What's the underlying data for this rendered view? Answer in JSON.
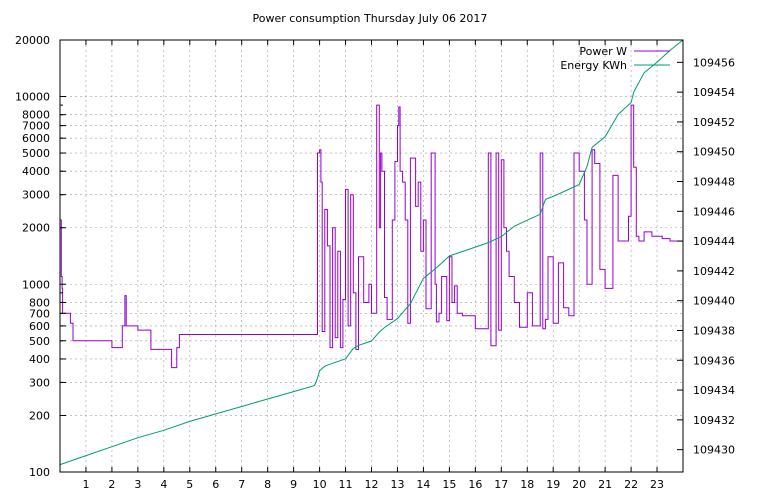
{
  "chart_data": {
    "type": "line",
    "title": "Power consumption Thursday July 06 2017",
    "xlabel": "",
    "ylabel": "",
    "y2label": "",
    "xlim": [
      0,
      24
    ],
    "x_ticks": [
      "1",
      "2",
      "3",
      "4",
      "5",
      "6",
      "7",
      "8",
      "9",
      "10",
      "11",
      "12",
      "13",
      "14",
      "15",
      "16",
      "17",
      "18",
      "19",
      "20",
      "21",
      "22",
      "23"
    ],
    "y_scale": "log",
    "ylim": [
      100,
      20000
    ],
    "y_ticks": [
      "100",
      "200",
      "300",
      "400",
      "500",
      "600",
      "700",
      "800",
      "1000",
      "2000",
      "3000",
      "4000",
      "5000",
      "6000",
      "7000",
      "8000",
      "10000",
      "20000"
    ],
    "y2lim": [
      109428.5,
      109457.5
    ],
    "y2_ticks": [
      "109430",
      "109432",
      "109434",
      "109436",
      "109438",
      "109440",
      "109442",
      "109444",
      "109446",
      "109448",
      "109450",
      "109452",
      "109454",
      "109456"
    ],
    "grid": true,
    "legend_position": "top-right",
    "colors": {
      "power": "#9400d3",
      "energy": "#009e73"
    },
    "series": [
      {
        "name": "Power W",
        "axis": "y",
        "x": [
          0,
          0.05,
          0.08,
          0.1,
          0.12,
          0.2,
          0.4,
          0.5,
          0.6,
          1.5,
          2.0,
          2.4,
          2.4,
          2.5,
          2.55,
          3.0,
          3.4,
          3.5,
          3.6,
          4.2,
          4.3,
          4.5,
          4.5,
          4.6,
          9.9,
          9.92,
          10.0,
          10.05,
          10.1,
          10.2,
          10.3,
          10.4,
          10.5,
          10.6,
          10.7,
          10.8,
          10.9,
          11.0,
          11.1,
          11.2,
          11.3,
          11.4,
          11.5,
          11.7,
          11.9,
          12.0,
          12.2,
          12.3,
          12.35,
          12.4,
          12.5,
          12.6,
          12.8,
          12.9,
          13.0,
          13.05,
          13.1,
          13.2,
          13.3,
          13.4,
          13.5,
          13.7,
          13.8,
          13.9,
          14.0,
          14.1,
          14.3,
          14.45,
          14.5,
          14.6,
          14.7,
          14.9,
          15.0,
          15.1,
          15.2,
          15.3,
          15.5,
          15.8,
          16.0,
          16.2,
          16.5,
          16.6,
          16.8,
          16.9,
          17.0,
          17.1,
          17.2,
          17.3,
          17.5,
          17.7,
          18.0,
          18.2,
          18.5,
          18.6,
          18.7,
          18.8,
          19.0,
          19.2,
          19.4,
          19.6,
          19.8,
          20.0,
          20.2,
          20.3,
          20.5,
          20.6,
          20.8,
          21.0,
          21.3,
          21.5,
          21.6,
          21.9,
          22.0,
          22.1,
          22.2,
          22.3,
          22.5,
          22.8,
          23.0,
          23.2,
          23.5,
          24.0
        ],
        "values": [
          2200,
          1100,
          950,
          700,
          700,
          700,
          620,
          500,
          500,
          500,
          460,
          460,
          600,
          870,
          600,
          570,
          570,
          450,
          450,
          450,
          360,
          360,
          460,
          540,
          540,
          5000,
          5200,
          3500,
          560,
          2500,
          1600,
          460,
          2000,
          520,
          1500,
          460,
          830,
          3200,
          600,
          3000,
          900,
          450,
          1400,
          800,
          1000,
          700,
          9000,
          2000,
          5000,
          4000,
          850,
          650,
          2200,
          4500,
          7000,
          8800,
          4000,
          3500,
          2200,
          620,
          4700,
          2600,
          3500,
          1500,
          2200,
          740,
          5000,
          1000,
          630,
          700,
          1100,
          640,
          1400,
          800,
          980,
          700,
          680,
          680,
          580,
          580,
          5000,
          470,
          5000,
          570,
          4600,
          2000,
          1500,
          1100,
          800,
          590,
          900,
          600,
          5000,
          580,
          650,
          1400,
          620,
          1300,
          750,
          680,
          5000,
          4000,
          2200,
          1000,
          5200,
          4400,
          1200,
          950,
          3800,
          1700,
          1700,
          2300,
          9000,
          4200,
          1800,
          1700,
          1900,
          1800,
          1800,
          1750,
          1700,
          1750
        ]
      },
      {
        "name": "Energy KWh",
        "axis": "y2",
        "x": [
          0,
          1,
          2,
          3,
          4,
          5,
          6,
          7,
          8,
          9,
          9.8,
          9.9,
          10.0,
          10.2,
          10.5,
          11.0,
          11.3,
          11.5,
          12.0,
          12.3,
          12.5,
          13.0,
          13.5,
          14.0,
          14.5,
          15.0,
          15.5,
          16.0,
          16.5,
          17.0,
          17.5,
          18.0,
          18.5,
          18.7,
          19.0,
          19.5,
          20.0,
          20.3,
          20.5,
          21.0,
          21.5,
          22.0,
          22.1,
          22.5,
          23.0,
          23.5,
          24.0
        ],
        "values": [
          109429.0,
          109429.6,
          109430.2,
          109430.8,
          109431.3,
          109431.9,
          109432.4,
          109432.9,
          109433.4,
          109433.9,
          109434.3,
          109434.7,
          109435.3,
          109435.6,
          109435.8,
          109436.1,
          109436.8,
          109437.0,
          109437.3,
          109437.9,
          109438.2,
          109438.8,
          109439.8,
          109441.5,
          109442.2,
          109443.0,
          109443.3,
          109443.6,
          109443.9,
          109444.3,
          109445.0,
          109445.4,
          109445.8,
          109446.8,
          109447.0,
          109447.4,
          109447.8,
          109449.0,
          109450.3,
          109451.0,
          109452.5,
          109453.3,
          109454.0,
          109455.3,
          109456.0,
          109456.8,
          109457.5
        ]
      }
    ]
  }
}
